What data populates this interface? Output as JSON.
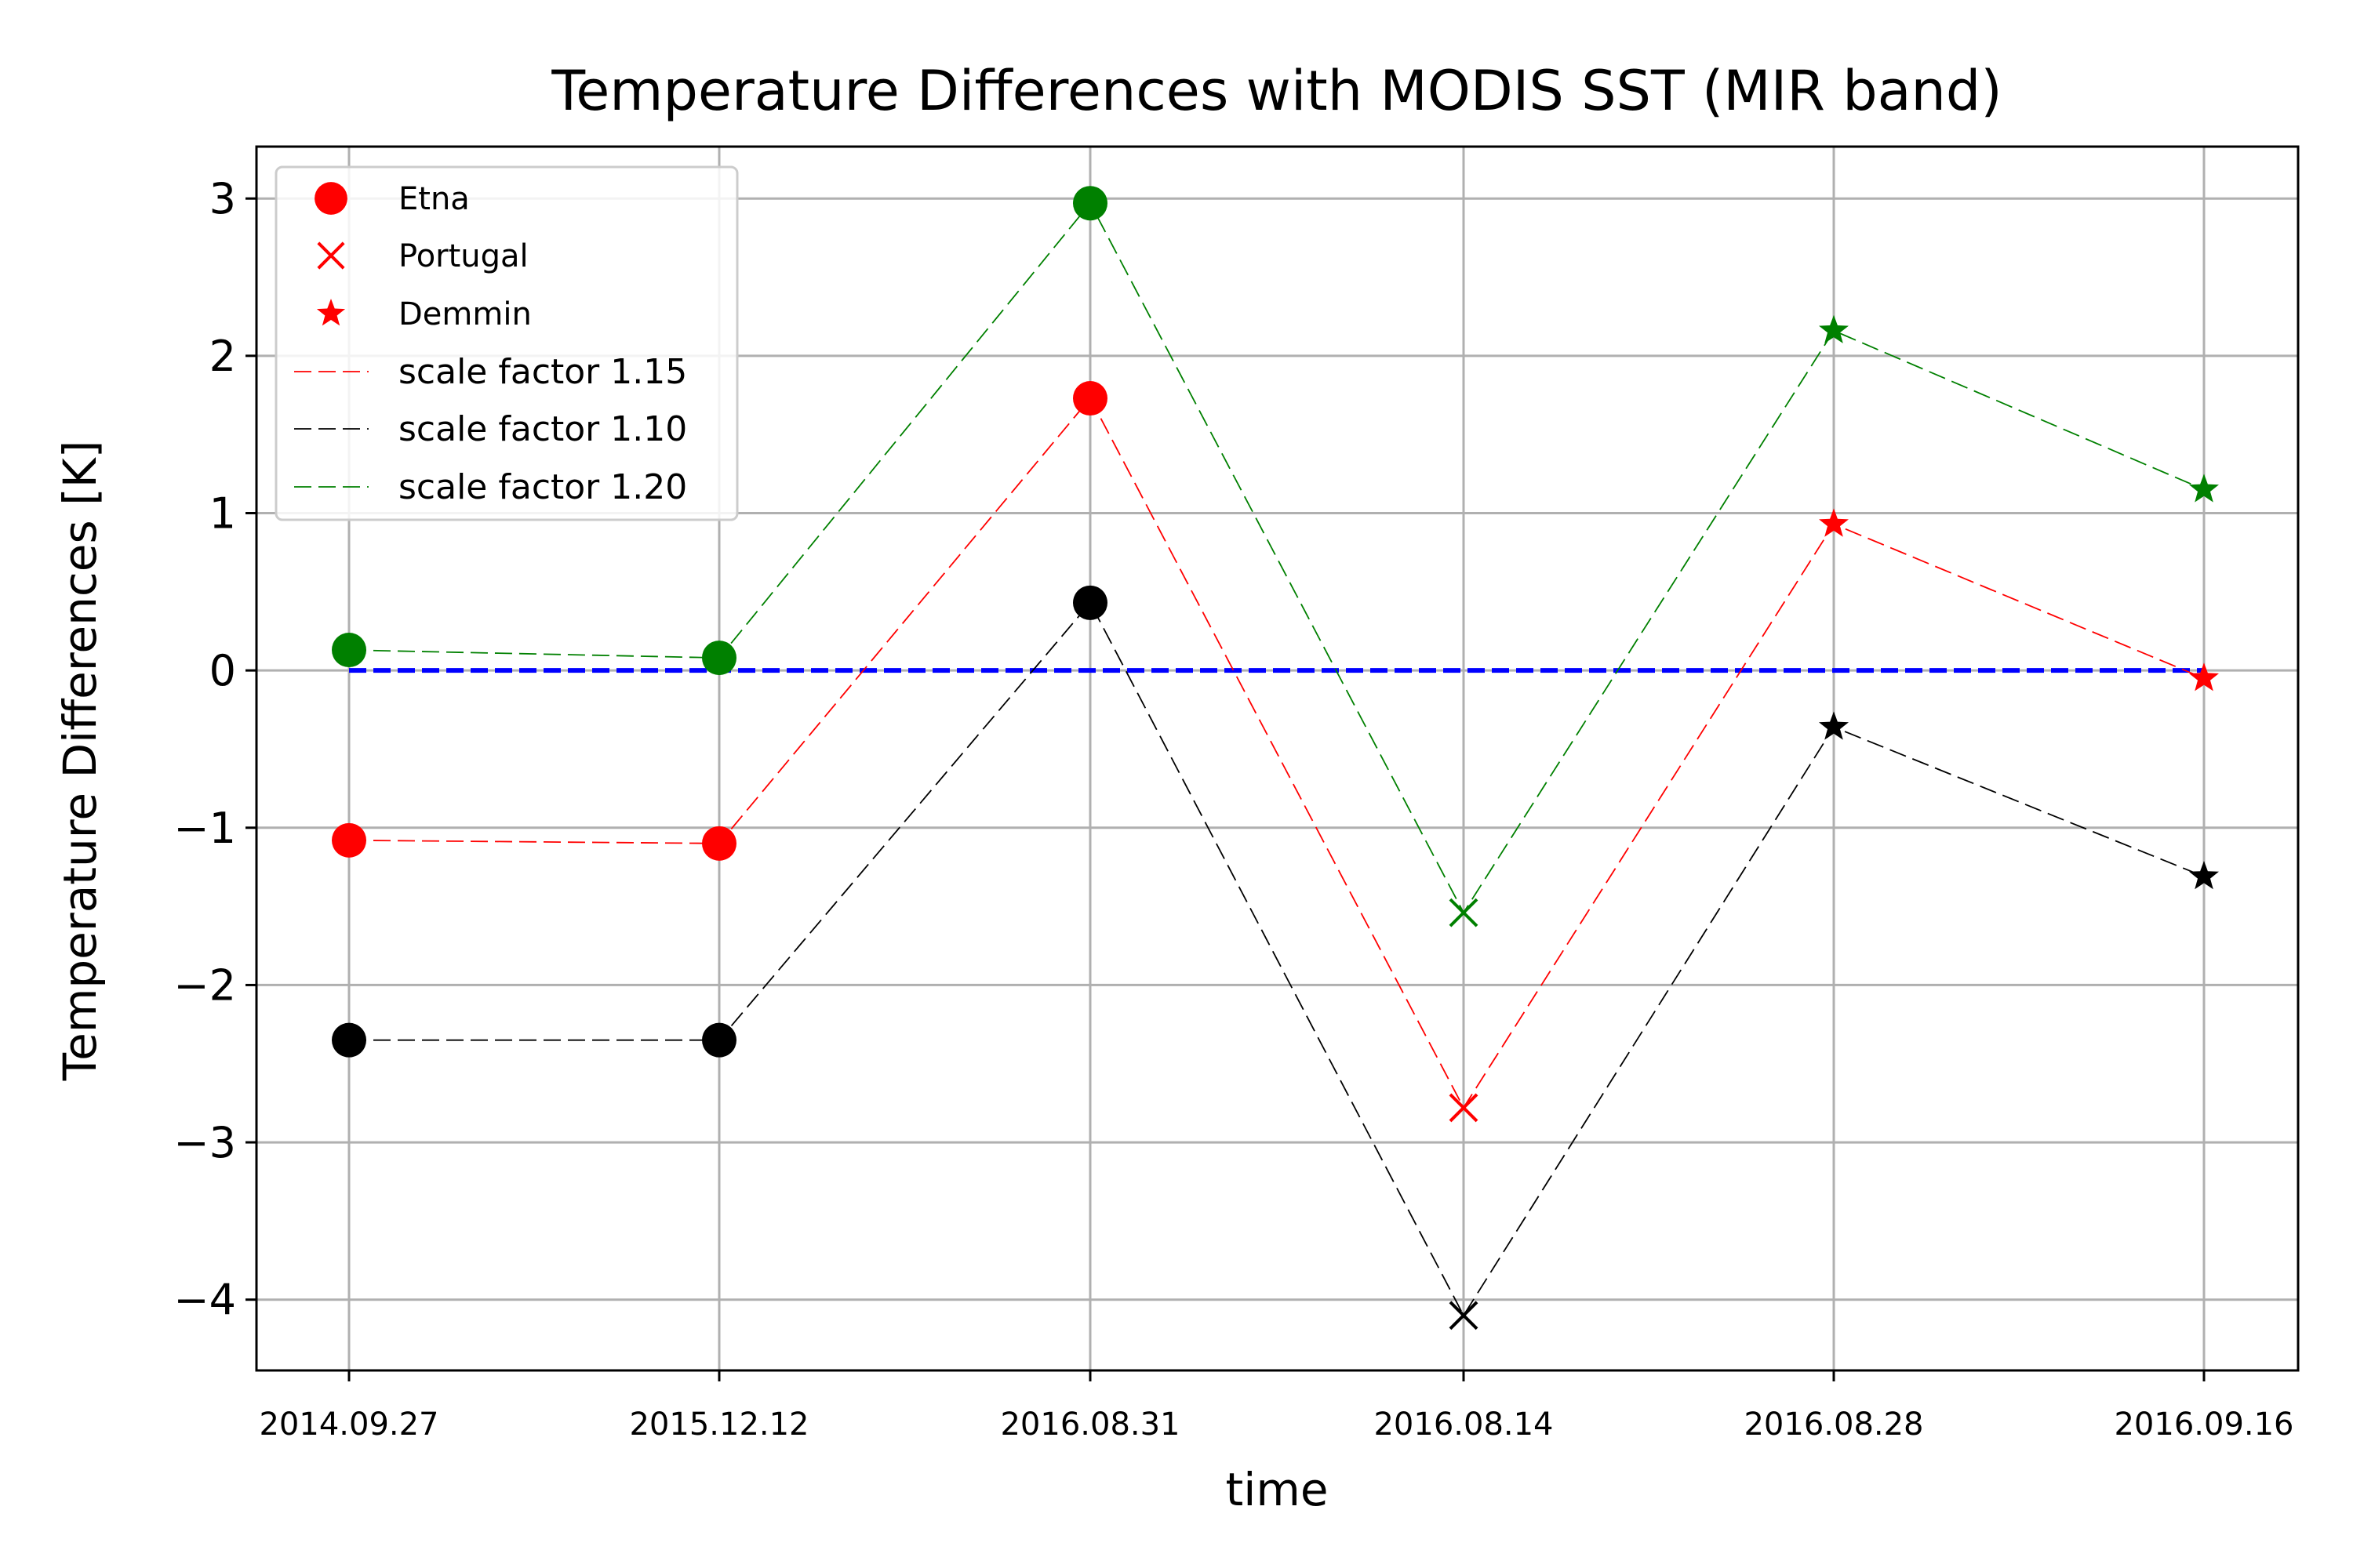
{
  "chart_data": {
    "type": "line",
    "title": "Temperature Differences with MODIS SST (MIR band)",
    "xlabel": "time",
    "ylabel": "Temperature Differences [K]",
    "categories": [
      "2014.09.27",
      "2015.12.12",
      "2016.08.31",
      "2016.08.14",
      "2016.08.28",
      "2016.09.16"
    ],
    "yticks": [
      3,
      2,
      1,
      0,
      -1,
      -2,
      -3,
      -4
    ],
    "ytick_labels": [
      "3",
      "2",
      "1",
      "0",
      "−1",
      "−2",
      "−3",
      "−4"
    ],
    "ylim": [
      -4.45,
      3.33
    ],
    "grid": true,
    "legend_position": "top-left",
    "site_markers": [
      {
        "name": "Etna",
        "marker": "circle",
        "points": [
          0,
          1,
          2
        ]
      },
      {
        "name": "Portugal",
        "marker": "x",
        "points": [
          3
        ]
      },
      {
        "name": "Demmin",
        "marker": "star",
        "points": [
          4,
          5
        ]
      }
    ],
    "series": [
      {
        "name": "scale factor 1.15",
        "color": "#ff0000",
        "values": [
          -1.08,
          -1.1,
          1.73,
          -2.78,
          0.93,
          -0.05
        ]
      },
      {
        "name": "scale factor 1.10",
        "color": "#000000",
        "values": [
          -2.35,
          -2.35,
          0.43,
          -4.1,
          -0.36,
          -1.31
        ]
      },
      {
        "name": "scale factor 1.20",
        "color": "#008000",
        "values": [
          0.13,
          0.08,
          2.97,
          -1.54,
          2.16,
          1.15
        ]
      }
    ],
    "reference_line": {
      "value": 0,
      "color": "#0000ff"
    },
    "marker_legend_color": "#ff0000"
  }
}
